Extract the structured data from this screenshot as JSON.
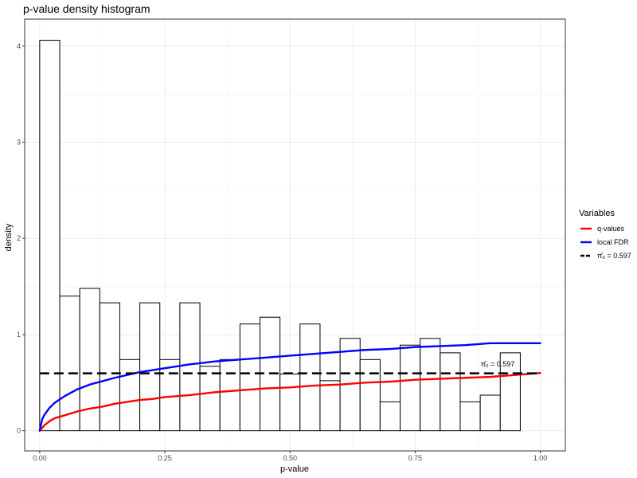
{
  "chart_data": {
    "type": "histogram",
    "title": "p-value density histogram",
    "xlabel": "p-value",
    "ylabel": "density",
    "xlim": [
      -0.03,
      1.05
    ],
    "ylim": [
      -0.21,
      4.28
    ],
    "x_ticks": [
      0.0,
      0.25,
      0.5,
      0.75,
      1.0
    ],
    "x_tick_labels": [
      "0.00",
      "0.25",
      "0.50",
      "0.75",
      "1.00"
    ],
    "y_ticks": [
      0,
      1,
      2,
      3,
      4
    ],
    "y_tick_labels": [
      "0",
      "1",
      "2",
      "3",
      "4"
    ],
    "grid": true,
    "legend_position": "right",
    "bins": {
      "width": 0.04,
      "start": 0.0,
      "densities": [
        4.06,
        1.4,
        1.48,
        1.33,
        0.74,
        1.33,
        0.74,
        1.33,
        0.67,
        0.74,
        1.11,
        1.18,
        0.59,
        1.11,
        0.52,
        0.96,
        0.74,
        0.3,
        0.89,
        0.96,
        0.81,
        0.3,
        0.37,
        0.81
      ]
    },
    "series": [
      {
        "name": "q-values",
        "color": "#ff0000",
        "x": [
          0.0,
          0.01,
          0.02,
          0.03,
          0.05,
          0.075,
          0.1,
          0.125,
          0.15,
          0.175,
          0.2,
          0.225,
          0.25,
          0.3,
          0.35,
          0.4,
          0.45,
          0.5,
          0.55,
          0.6,
          0.65,
          0.7,
          0.75,
          0.8,
          0.85,
          0.9,
          0.95,
          1.0
        ],
        "y": [
          0.0,
          0.06,
          0.1,
          0.13,
          0.16,
          0.2,
          0.23,
          0.25,
          0.28,
          0.3,
          0.32,
          0.33,
          0.35,
          0.37,
          0.4,
          0.42,
          0.44,
          0.45,
          0.47,
          0.48,
          0.5,
          0.51,
          0.53,
          0.54,
          0.55,
          0.56,
          0.58,
          0.6
        ]
      },
      {
        "name": "local FDR",
        "color": "#0000ff",
        "x": [
          0.0,
          0.005,
          0.01,
          0.02,
          0.03,
          0.05,
          0.075,
          0.1,
          0.15,
          0.2,
          0.25,
          0.3,
          0.35,
          0.4,
          0.45,
          0.5,
          0.55,
          0.6,
          0.65,
          0.7,
          0.75,
          0.8,
          0.85,
          0.9,
          0.95,
          1.0
        ],
        "y": [
          0.0,
          0.12,
          0.17,
          0.24,
          0.29,
          0.36,
          0.43,
          0.48,
          0.55,
          0.61,
          0.65,
          0.69,
          0.72,
          0.74,
          0.76,
          0.78,
          0.8,
          0.82,
          0.84,
          0.85,
          0.87,
          0.88,
          0.89,
          0.91,
          0.91,
          0.91
        ]
      },
      {
        "name": "π̂₀ = 0.597",
        "color": "#000000",
        "dashed": true,
        "x": [
          0.0,
          1.0
        ],
        "y": [
          0.597,
          0.597
        ]
      }
    ],
    "legend": {
      "title": "Variables",
      "items": [
        "q-values",
        "local FDR",
        "π̂₀ = 0.597"
      ]
    },
    "annotations": [
      {
        "text": "π̂₀ = 0.597",
        "x": 0.9,
        "y": 0.65
      }
    ]
  }
}
